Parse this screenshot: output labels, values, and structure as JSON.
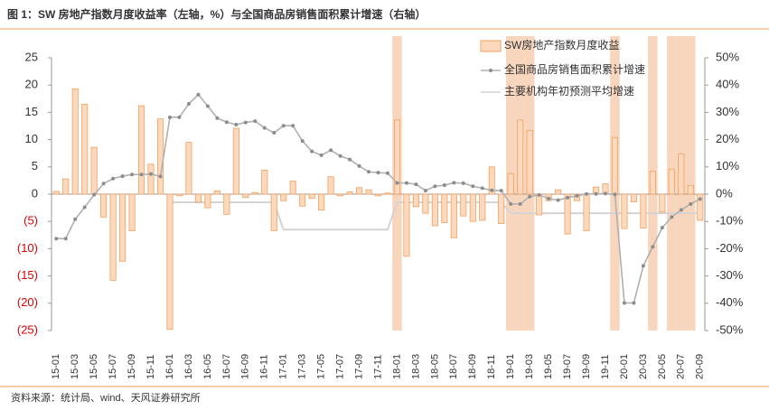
{
  "chart_data": {
    "type": "bar",
    "title": "图 1：SW 房地产指数月度收益率（左轴，%）与全国商品房销售面积累计增速（右轴）",
    "source": "资料来源：统计局、wind、天风证券研究所",
    "categories": [
      "15-01",
      null,
      "15-03",
      null,
      "15-05",
      null,
      "15-07",
      null,
      "15-09",
      null,
      "15-11",
      null,
      "16-01",
      null,
      "16-03",
      null,
      "16-05",
      null,
      "16-07",
      null,
      "16-09",
      null,
      "16-11",
      null,
      "17-01",
      null,
      "17-03",
      null,
      "17-05",
      null,
      "17-07",
      null,
      "17-09",
      null,
      "17-11",
      null,
      "18-01",
      null,
      "18-03",
      null,
      "18-05",
      null,
      "18-07",
      null,
      "18-09",
      null,
      "18-11",
      null,
      "19-01",
      null,
      "19-03",
      null,
      "19-05",
      null,
      "19-07",
      null,
      "19-09",
      null,
      "19-11",
      null,
      "20-01",
      null,
      "20-03",
      null,
      "20-05",
      null,
      "20-07",
      null,
      "20-09"
    ],
    "highlight_indices": [
      36,
      48,
      49,
      50,
      59,
      63,
      65,
      66,
      67
    ],
    "highlight_color": "#f8d5bd",
    "series": [
      {
        "name": "SW房地产指数月度收益",
        "type": "bar",
        "axis": "y",
        "color": "#fcd9bd",
        "stroke": "#f0a060",
        "values": [
          0.5,
          2.8,
          19.3,
          16.5,
          8.6,
          -4.2,
          -15.8,
          -12.3,
          -6.7,
          16.2,
          5.5,
          13.8,
          -24.8,
          -0.3,
          9.5,
          -1.5,
          -2.5,
          0.6,
          -3.7,
          12.1,
          -0.6,
          0.3,
          4.4,
          -6.7,
          -1.2,
          2.4,
          -2.2,
          -0.8,
          -2.9,
          3.2,
          -0.3,
          0.4,
          1.2,
          0.8,
          -0.3,
          0.2,
          13.6,
          -11.4,
          -2.3,
          -3.5,
          -5.8,
          -5.2,
          -8.0,
          -4.0,
          -5.0,
          -4.8,
          5.0,
          -5.4,
          3.8,
          13.6,
          11.7,
          -3.8,
          -1.2,
          0.8,
          -7.3,
          -1.2,
          -6.7,
          1.3,
          1.9,
          10.4,
          -6.3,
          -1.4,
          -6.2,
          4.2,
          -3.3,
          4.6,
          7.4,
          1.6,
          -4.8
        ]
      },
      {
        "name": "全国商品房销售面积累计增速",
        "type": "line",
        "axis": "y2",
        "color": "#b0b0b0",
        "marker_color": "#8c8c8c",
        "values": [
          -16.3,
          -16.3,
          -9.2,
          -4.8,
          -0.2,
          3.9,
          5.7,
          6.6,
          7.2,
          7.2,
          7.4,
          6.5,
          28.2,
          28.2,
          33.1,
          36.5,
          32.3,
          27.9,
          26.4,
          25.5,
          26.3,
          26.8,
          24.3,
          22.5,
          25.1,
          25.1,
          19.5,
          15.7,
          14.3,
          16.1,
          14.0,
          12.7,
          10.3,
          8.2,
          7.9,
          7.7,
          4.1,
          4.1,
          3.6,
          1.3,
          2.9,
          3.3,
          4.2,
          4.0,
          2.9,
          2.2,
          1.4,
          1.3,
          -3.6,
          -3.6,
          -0.9,
          -0.3,
          -1.6,
          -2.2,
          -1.3,
          -0.6,
          0.1,
          0.1,
          0.2,
          -0.1,
          -39.9,
          -39.9,
          -26.3,
          -19.3,
          -12.3,
          -8.4,
          -5.8,
          -3.6,
          -1.8
        ]
      },
      {
        "name": "主要机构年初预测平均增速",
        "type": "step",
        "axis": "y2",
        "color": "#d4d4d4",
        "values": [
          null,
          null,
          null,
          null,
          null,
          null,
          null,
          null,
          null,
          null,
          null,
          null,
          -3,
          -3,
          -3,
          -3,
          -3,
          -3,
          -3,
          -3,
          -3,
          -3,
          -3,
          -3,
          -13,
          -13,
          -13,
          -13,
          -13,
          -13,
          -13,
          -13,
          -13,
          -13,
          -13,
          -13,
          -3,
          -3,
          -3,
          -3,
          -3,
          -3,
          -3,
          -3,
          -3,
          -3,
          -3,
          -3,
          -7,
          -7,
          -7,
          -7,
          -7,
          -7,
          -7,
          -7,
          -7,
          -7,
          -7,
          -7,
          -7,
          -7,
          -7,
          -7,
          -7,
          -7,
          -7,
          -7,
          -7
        ]
      }
    ],
    "ylim": [
      -25,
      25
    ],
    "yticks": [
      {
        "value": -25,
        "label": "(25)"
      },
      {
        "value": -20,
        "label": "(20)"
      },
      {
        "value": -15,
        "label": "(15)"
      },
      {
        "value": -10,
        "label": "(10)"
      },
      {
        "value": -5,
        "label": "(5)"
      },
      0,
      5,
      10,
      15,
      20,
      25
    ],
    "negative_tick_color": "#e00000",
    "y2lim": [
      -50,
      50
    ],
    "y2ticks": [
      {
        "value": -50,
        "label": "-50%"
      },
      {
        "value": -40,
        "label": "-40%"
      },
      {
        "value": -30,
        "label": "-30%"
      },
      {
        "value": -20,
        "label": "-20%"
      },
      {
        "value": -10,
        "label": "-10%"
      },
      {
        "value": 0,
        "label": "0%"
      },
      {
        "value": 10,
        "label": "10%"
      },
      {
        "value": 20,
        "label": "20%"
      },
      {
        "value": 30,
        "label": "30%"
      },
      {
        "value": 40,
        "label": "40%"
      },
      {
        "value": 50,
        "label": "50%"
      }
    ],
    "legend": "top-right"
  }
}
